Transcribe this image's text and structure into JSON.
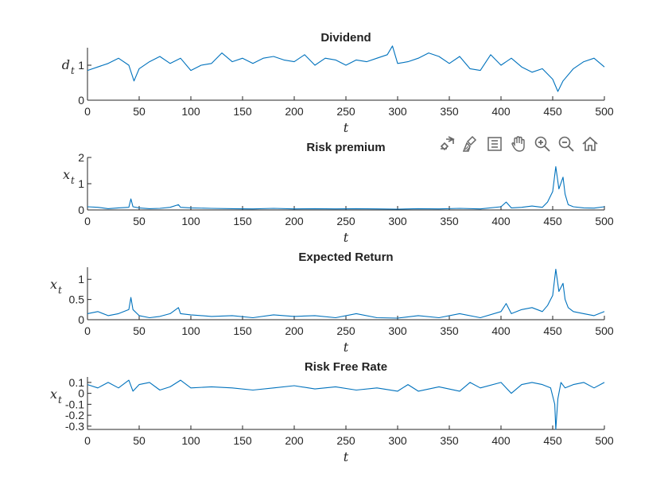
{
  "toolbar": {
    "icons": [
      "export-icon",
      "brush-icon",
      "legend-icon",
      "pan-icon",
      "zoom-in-icon",
      "zoom-out-icon",
      "home-icon"
    ]
  },
  "colors": {
    "line": "#0072BD",
    "axis": "#262626"
  },
  "chart_data": [
    {
      "type": "line",
      "title": "Dividend",
      "xlabel": "t",
      "ylabel": "d",
      "ylabel_sub": "t",
      "xlim": [
        0,
        500
      ],
      "ylim": [
        0,
        1.5
      ],
      "xticks": [
        0,
        50,
        100,
        150,
        200,
        250,
        300,
        350,
        400,
        450,
        500
      ],
      "yticks": [
        0,
        1
      ],
      "grid": false,
      "series": [
        {
          "x": [
            0,
            10,
            20,
            30,
            40,
            45,
            50,
            60,
            70,
            80,
            90,
            100,
            110,
            120,
            130,
            140,
            150,
            160,
            170,
            180,
            190,
            200,
            210,
            220,
            230,
            240,
            250,
            260,
            270,
            280,
            290,
            295,
            300,
            310,
            320,
            330,
            340,
            350,
            360,
            370,
            380,
            390,
            400,
            410,
            420,
            430,
            440,
            450,
            455,
            460,
            470,
            480,
            490,
            500
          ],
          "y": [
            0.85,
            0.95,
            1.05,
            1.2,
            1.0,
            0.55,
            0.9,
            1.1,
            1.25,
            1.05,
            1.2,
            0.85,
            1.0,
            1.05,
            1.35,
            1.1,
            1.2,
            1.05,
            1.2,
            1.25,
            1.15,
            1.1,
            1.3,
            1.0,
            1.2,
            1.15,
            1.0,
            1.15,
            1.1,
            1.2,
            1.3,
            1.55,
            1.05,
            1.1,
            1.2,
            1.35,
            1.25,
            1.05,
            1.25,
            0.9,
            0.85,
            1.3,
            1.0,
            1.2,
            0.95,
            0.8,
            0.9,
            0.6,
            0.25,
            0.55,
            0.9,
            1.1,
            1.2,
            0.95
          ]
        }
      ]
    },
    {
      "type": "line",
      "title": "Risk premium",
      "xlabel": "t",
      "ylabel": "x",
      "ylabel_sub": "t",
      "xlim": [
        0,
        500
      ],
      "ylim": [
        0,
        2
      ],
      "xticks": [
        0,
        50,
        100,
        150,
        200,
        250,
        300,
        350,
        400,
        450,
        500
      ],
      "yticks": [
        0,
        1,
        2
      ],
      "grid": false,
      "series": [
        {
          "x": [
            0,
            10,
            20,
            30,
            40,
            42,
            44,
            50,
            60,
            70,
            80,
            88,
            90,
            100,
            120,
            140,
            160,
            180,
            200,
            220,
            240,
            260,
            280,
            300,
            320,
            340,
            360,
            380,
            400,
            405,
            410,
            420,
            430,
            440,
            445,
            450,
            453,
            456,
            460,
            462,
            465,
            470,
            480,
            490,
            500
          ],
          "y": [
            0.12,
            0.1,
            0.05,
            0.08,
            0.1,
            0.42,
            0.12,
            0.08,
            0.05,
            0.06,
            0.1,
            0.2,
            0.1,
            0.08,
            0.06,
            0.05,
            0.04,
            0.06,
            0.04,
            0.05,
            0.04,
            0.05,
            0.04,
            0.03,
            0.05,
            0.04,
            0.06,
            0.04,
            0.12,
            0.3,
            0.08,
            0.1,
            0.15,
            0.1,
            0.3,
            0.7,
            1.65,
            0.8,
            1.25,
            0.6,
            0.2,
            0.12,
            0.08,
            0.07,
            0.12
          ]
        }
      ]
    },
    {
      "type": "line",
      "title": "Expected Return",
      "xlabel": "t",
      "ylabel": "x",
      "ylabel_sub": "t",
      "xlim": [
        0,
        500
      ],
      "ylim": [
        0,
        1.3
      ],
      "xticks": [
        0,
        50,
        100,
        150,
        200,
        250,
        300,
        350,
        400,
        450,
        500
      ],
      "yticks": [
        0,
        0.5,
        1
      ],
      "grid": false,
      "series": [
        {
          "x": [
            0,
            10,
            20,
            30,
            40,
            42,
            44,
            50,
            60,
            70,
            80,
            88,
            90,
            100,
            120,
            140,
            160,
            180,
            200,
            220,
            240,
            260,
            280,
            300,
            320,
            340,
            360,
            380,
            400,
            405,
            410,
            420,
            430,
            440,
            445,
            450,
            453,
            456,
            460,
            462,
            465,
            470,
            480,
            490,
            500
          ],
          "y": [
            0.15,
            0.2,
            0.1,
            0.15,
            0.25,
            0.55,
            0.25,
            0.1,
            0.05,
            0.08,
            0.15,
            0.3,
            0.15,
            0.12,
            0.08,
            0.1,
            0.05,
            0.12,
            0.08,
            0.1,
            0.05,
            0.15,
            0.05,
            0.04,
            0.1,
            0.05,
            0.15,
            0.05,
            0.2,
            0.4,
            0.15,
            0.25,
            0.3,
            0.2,
            0.35,
            0.6,
            1.25,
            0.7,
            0.9,
            0.5,
            0.3,
            0.2,
            0.15,
            0.1,
            0.2
          ]
        }
      ]
    },
    {
      "type": "line",
      "title": "Risk Free Rate",
      "xlabel": "t",
      "ylabel": "x",
      "ylabel_sub": "t",
      "xlim": [
        0,
        500
      ],
      "ylim": [
        -0.33,
        0.15
      ],
      "xticks": [
        0,
        50,
        100,
        150,
        200,
        250,
        300,
        350,
        400,
        450,
        500
      ],
      "yticks": [
        -0.3,
        -0.2,
        -0.1,
        0,
        0.1
      ],
      "grid": false,
      "series": [
        {
          "x": [
            0,
            10,
            20,
            30,
            40,
            44,
            50,
            60,
            70,
            80,
            90,
            100,
            120,
            140,
            160,
            180,
            200,
            220,
            240,
            260,
            280,
            300,
            310,
            320,
            340,
            360,
            370,
            380,
            400,
            410,
            420,
            430,
            440,
            448,
            452,
            453,
            455,
            458,
            462,
            470,
            480,
            490,
            500
          ],
          "y": [
            0.08,
            0.05,
            0.1,
            0.05,
            0.12,
            0.02,
            0.08,
            0.1,
            0.03,
            0.06,
            0.12,
            0.05,
            0.06,
            0.05,
            0.03,
            0.05,
            0.07,
            0.04,
            0.06,
            0.03,
            0.05,
            0.02,
            0.08,
            0.02,
            0.06,
            0.02,
            0.1,
            0.05,
            0.1,
            0.0,
            0.08,
            0.1,
            0.08,
            0.05,
            -0.1,
            -0.33,
            -0.05,
            0.1,
            0.05,
            0.08,
            0.1,
            0.05,
            0.1
          ]
        }
      ]
    }
  ]
}
